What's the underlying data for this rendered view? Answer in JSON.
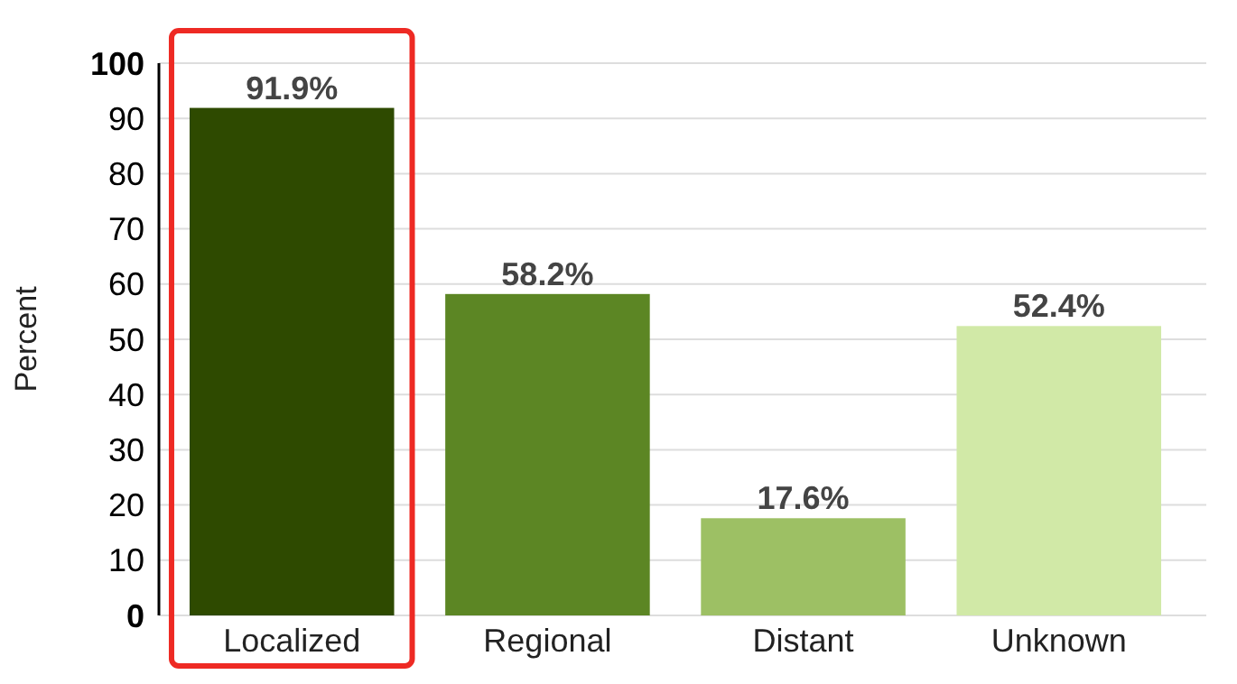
{
  "chart_data": {
    "type": "bar",
    "ylabel": "Percent",
    "categories": [
      "Localized",
      "Regional",
      "Distant",
      "Unknown"
    ],
    "values": [
      91.9,
      58.2,
      17.6,
      52.4
    ],
    "colors": [
      "#2e4a00",
      "#5c8624",
      "#9dc064",
      "#d1e9a7"
    ],
    "value_labels": [
      "91.9%",
      "58.2%",
      "17.6%",
      "52.4%"
    ],
    "ylim": [
      0,
      100
    ],
    "yticks": [
      0,
      10,
      20,
      30,
      40,
      50,
      60,
      70,
      80,
      90,
      100
    ],
    "grid": "y"
  }
}
